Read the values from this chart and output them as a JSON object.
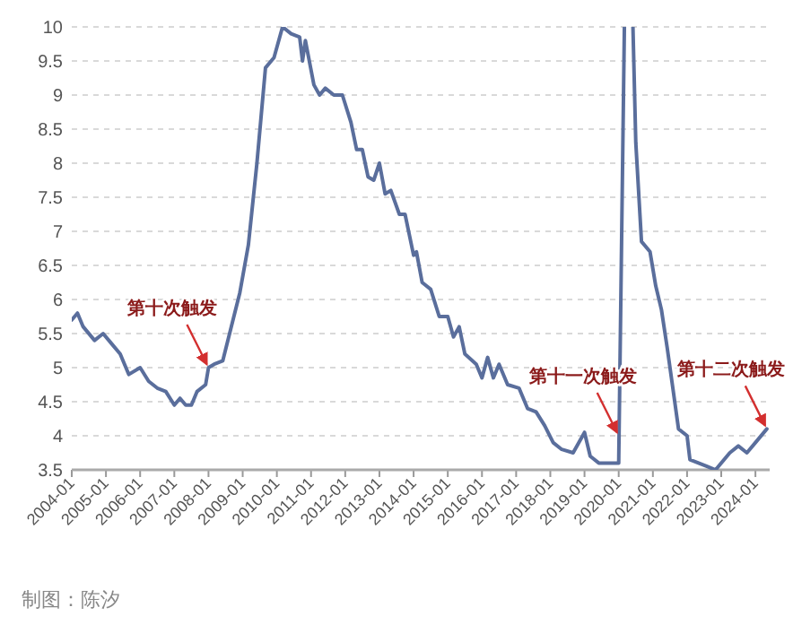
{
  "chart_data": {
    "type": "line",
    "x": [
      "2004-01",
      "2004-03",
      "2004-05",
      "2004-09",
      "2004-12",
      "2005-03",
      "2005-06",
      "2005-09",
      "2006-01",
      "2006-04",
      "2006-07",
      "2006-10",
      "2007-01",
      "2007-03",
      "2007-05",
      "2007-07",
      "2007-09",
      "2007-12",
      "2008-01",
      "2008-03",
      "2008-06",
      "2008-09",
      "2008-12",
      "2009-03",
      "2009-06",
      "2009-09",
      "2009-12",
      "2010-03",
      "2010-06",
      "2010-09",
      "2010-10",
      "2010-11",
      "2011-02",
      "2011-04",
      "2011-06",
      "2011-09",
      "2011-12",
      "2012-03",
      "2012-05",
      "2012-07",
      "2012-09",
      "2012-11",
      "2013-01",
      "2013-03",
      "2013-05",
      "2013-08",
      "2013-10",
      "2014-01",
      "2014-02",
      "2014-04",
      "2014-07",
      "2014-10",
      "2015-01",
      "2015-03",
      "2015-05",
      "2015-07",
      "2015-11",
      "2016-01",
      "2016-03",
      "2016-05",
      "2016-07",
      "2016-10",
      "2017-02",
      "2017-05",
      "2017-08",
      "2017-11",
      "2018-02",
      "2018-05",
      "2018-09",
      "2019-01",
      "2019-03",
      "2019-06",
      "2019-09",
      "2020-01",
      "2020-03",
      "2020-04",
      "2020-06",
      "2020-07",
      "2020-09",
      "2020-12",
      "2021-02",
      "2021-04",
      "2021-06",
      "2021-08",
      "2021-10",
      "2022-01",
      "2022-02",
      "2022-05",
      "2022-08",
      "2022-11",
      "2023-04",
      "2023-07",
      "2023-10",
      "2024-01",
      "2024-05"
    ],
    "series": [
      {
        "color": "#5a6e9c",
        "values": [
          5.7,
          5.8,
          5.6,
          5.4,
          5.5,
          5.35,
          5.2,
          4.9,
          5.0,
          4.8,
          4.7,
          4.65,
          4.45,
          4.55,
          4.45,
          4.45,
          4.65,
          4.75,
          5.0,
          5.05,
          5.1,
          5.6,
          6.1,
          6.8,
          8.0,
          9.4,
          9.55,
          10.0,
          9.9,
          9.85,
          9.5,
          9.8,
          9.15,
          9.0,
          9.1,
          9.0,
          9.0,
          8.6,
          8.2,
          8.2,
          7.8,
          7.75,
          8.0,
          7.55,
          7.6,
          7.25,
          7.25,
          6.65,
          6.7,
          6.25,
          6.15,
          5.75,
          5.75,
          5.45,
          5.6,
          5.2,
          5.05,
          4.85,
          5.15,
          4.85,
          5.05,
          4.75,
          4.7,
          4.4,
          4.35,
          4.15,
          3.9,
          3.8,
          3.75,
          4.05,
          3.7,
          3.6,
          3.6,
          3.6,
          10,
          null,
          10,
          8.3,
          6.85,
          6.7,
          6.2,
          5.85,
          5.3,
          4.7,
          4.1,
          4.0,
          3.65,
          3.6,
          3.55,
          3.5,
          3.75,
          3.85,
          3.75,
          3.9,
          4.1
        ]
      }
    ],
    "xlim": [
      "2004-01",
      "2024-06"
    ],
    "xticks": [
      "2004-01",
      "2005-01",
      "2006-01",
      "2007-01",
      "2008-01",
      "2009-01",
      "2010-01",
      "2011-01",
      "2012-01",
      "2013-01",
      "2014-01",
      "2015-01",
      "2016-01",
      "2017-01",
      "2018-01",
      "2019-01",
      "2020-01",
      "2021-01",
      "2022-01",
      "2023-01",
      "2024-01"
    ],
    "ylim": [
      3.5,
      10
    ],
    "yticks": [
      3.5,
      4,
      4.5,
      5,
      5.5,
      6,
      6.5,
      7,
      7.5,
      8,
      8.5,
      9,
      9.5,
      10
    ],
    "grid": "y",
    "annotations": [
      {
        "text": "第十次触发",
        "x": "2008-01",
        "y": 5.0
      },
      {
        "text": "第十一次触发",
        "x": "2020-01",
        "y": 4.0
      },
      {
        "text": "第十二次触发",
        "x": "2024-05",
        "y": 4.1
      },
      "制图：陈汐"
    ]
  }
}
